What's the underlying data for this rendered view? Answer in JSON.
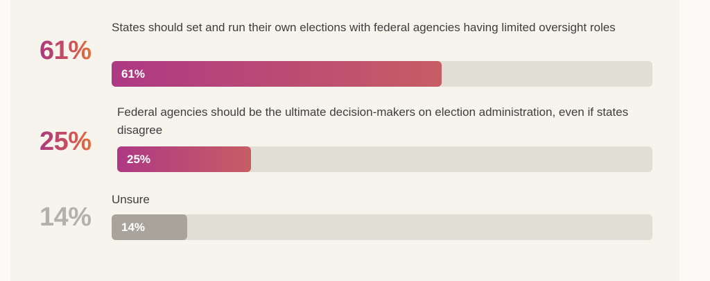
{
  "chart_data": {
    "type": "bar",
    "orientation": "horizontal",
    "title": "",
    "categories": [
      "States should set and run their own elections with federal agencies having limited oversight roles",
      "Federal agencies should be the ultimate decision-makers on election administration, even if states disagree",
      "Unsure"
    ],
    "values": [
      61,
      25,
      14
    ],
    "value_labels": [
      "61%",
      "25%",
      "14%"
    ],
    "xlim": [
      0,
      100
    ],
    "grid": false,
    "legend": false,
    "bar_styles": [
      "gradient",
      "gradient",
      "gray"
    ]
  },
  "rows": [
    {
      "big_label": "61%",
      "label": "States should set and run their own elections with federal agencies having limited oversight roles",
      "bar_label": "61%",
      "value": 61
    },
    {
      "big_label": "25%",
      "label": "Federal agencies should be the ultimate decision-makers on election administration, even if states disagree",
      "bar_label": "25%",
      "value": 25
    },
    {
      "big_label": "14%",
      "label": "Unsure",
      "bar_label": "14%",
      "value": 14
    }
  ],
  "colors": {
    "page_background": "#fbfaf6",
    "card_background": "#f7f4ee",
    "track": "#e1ded6",
    "bar_gradient_start": "#ad3984",
    "bar_gradient_end": "#c75d64",
    "big_label_gradient_start": "#ab3a80",
    "big_label_gradient_end": "#e2703b",
    "gray_bar": "#a8a49c",
    "gray_big_label": "#b4b1aa",
    "category_text": "#3d3d3d",
    "bar_value_text": "#ffffff"
  }
}
